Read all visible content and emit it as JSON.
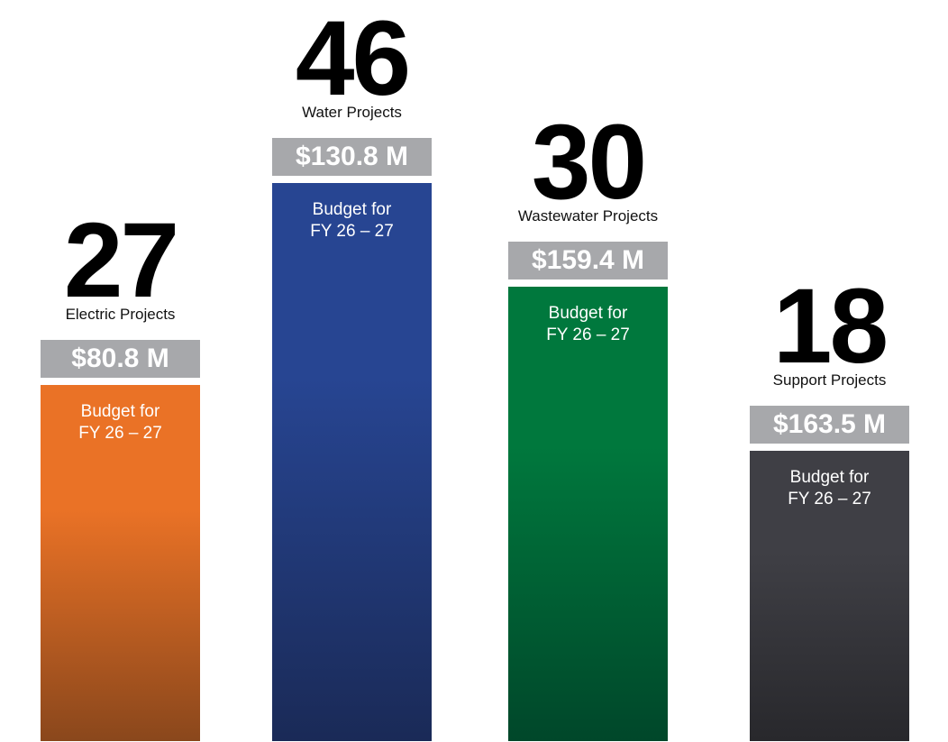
{
  "items": [
    {
      "count": "27",
      "label": "Electric Projects",
      "budget": "$80.8 M",
      "note_line1": "Budget for",
      "note_line2": "FY 26 – 27"
    },
    {
      "count": "46",
      "label": "Water Projects",
      "budget": "$130.8 M",
      "note_line1": "Budget for",
      "note_line2": "FY 26 – 27"
    },
    {
      "count": "30",
      "label": "Wastewater Projects",
      "budget": "$159.4 M",
      "note_line1": "Budget for",
      "note_line2": "FY 26 – 27"
    },
    {
      "count": "18",
      "label": "Support Projects",
      "budget": "$163.5 M",
      "note_line1": "Budget for",
      "note_line2": "FY 26 – 27"
    }
  ]
}
